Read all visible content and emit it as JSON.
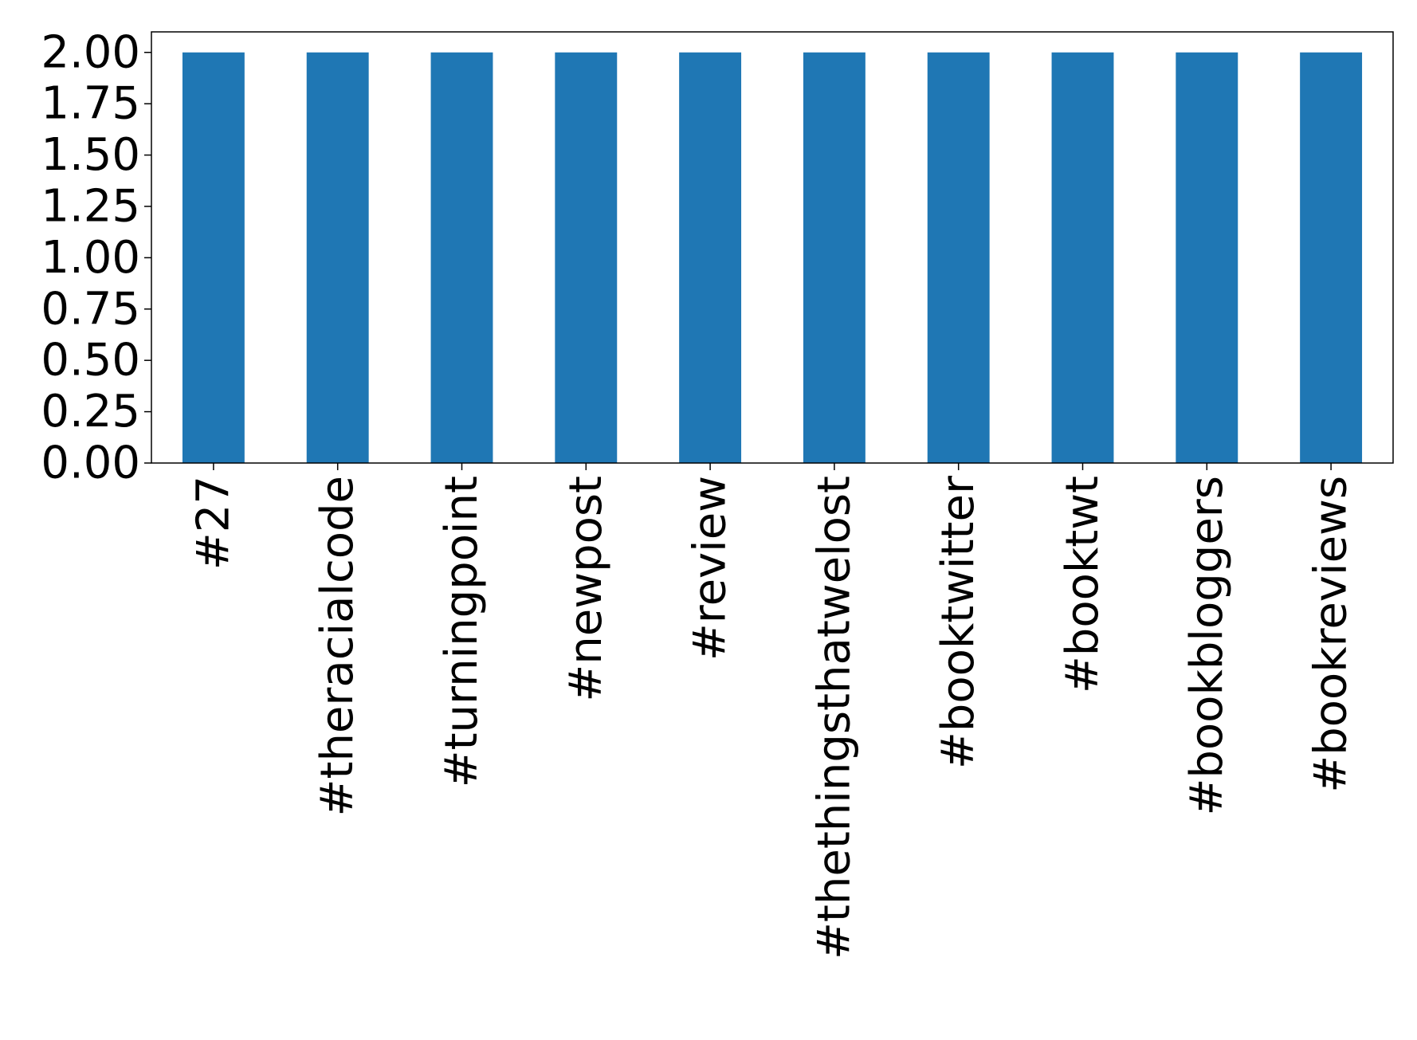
{
  "chart_data": {
    "type": "bar",
    "categories": [
      "#27",
      "#theracialcode",
      "#turningpoint",
      "#newpost",
      "#review",
      "#thethingsthatwelost",
      "#booktwitter",
      "#booktwt",
      "#bookbloggers",
      "#bookreviews"
    ],
    "values": [
      2,
      2,
      2,
      2,
      2,
      2,
      2,
      2,
      2,
      2
    ],
    "ylim": [
      0,
      2.1
    ],
    "yticks": [
      "0.00",
      "0.25",
      "0.50",
      "0.75",
      "1.00",
      "1.25",
      "1.50",
      "1.75",
      "2.00"
    ],
    "title": "",
    "xlabel": "",
    "ylabel": "",
    "grid": false,
    "bar_color": "#1f77b4"
  }
}
